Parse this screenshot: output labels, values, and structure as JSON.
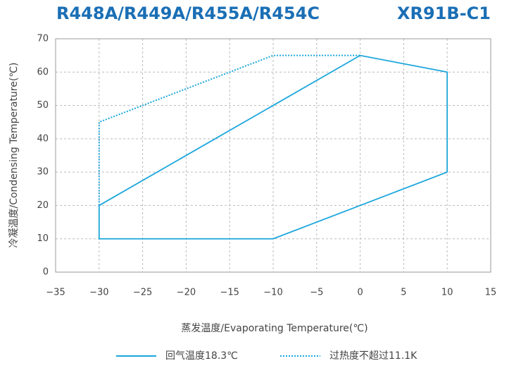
{
  "chart_data": {
    "type": "line",
    "title": "R448A/R449A/R455A/R454C",
    "subtitle": "XR91B-C1",
    "x_label": "蒸发温度/Evaporating Temperature(℃)",
    "y_label": "冷凝温度/Condensing Temperature(℃)",
    "xlim": [
      -35,
      15
    ],
    "xticks": [
      {
        "value": -35,
        "label": "−35"
      },
      {
        "value": -30,
        "label": "−30"
      },
      {
        "value": -25,
        "label": "−25"
      },
      {
        "value": -20,
        "label": "−20"
      },
      {
        "value": -15,
        "label": "−15"
      },
      {
        "value": -10,
        "label": "−10"
      },
      {
        "value": -5,
        "label": "−5"
      },
      0,
      5,
      10,
      15
    ],
    "ylim": [
      0,
      70
    ],
    "yticks": [
      0,
      10,
      20,
      30,
      40,
      50,
      60,
      70
    ],
    "grid": true,
    "legend": "bottom",
    "series": [
      {
        "name": "回气温度18.3℃",
        "color": "#1ba6dc",
        "style": "solid",
        "x": [
          -30,
          -10,
          0,
          10,
          10,
          0,
          -10,
          -30,
          -30
        ],
        "values": [
          20,
          50,
          65,
          60,
          30,
          20,
          10,
          10,
          20
        ]
      },
      {
        "name": "过热度不超过11.1K",
        "color": "#1ba6dc",
        "style": "dotted",
        "x": [
          -30,
          -30,
          -10,
          0
        ],
        "values": [
          20,
          45,
          65,
          65
        ]
      }
    ]
  }
}
